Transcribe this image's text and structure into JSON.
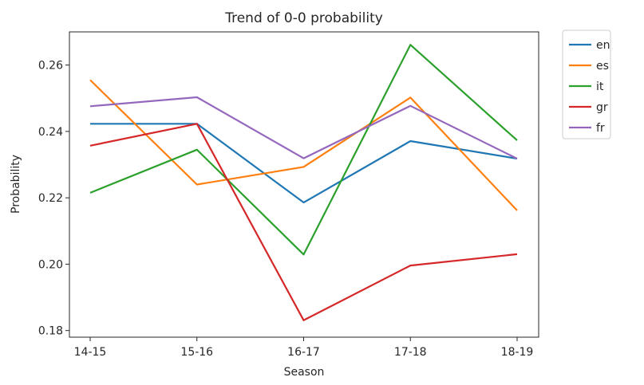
{
  "chart_data": {
    "type": "line",
    "title": "Trend of 0-0 probability",
    "xlabel": "Season",
    "ylabel": "Probability",
    "categories": [
      "14-15",
      "15-16",
      "16-17",
      "17-18",
      "18-19"
    ],
    "ylim": [
      0.178,
      0.27
    ],
    "yticks": [
      0.18,
      0.2,
      0.22,
      0.24,
      0.26
    ],
    "ytick_labels": [
      "0.18",
      "0.20",
      "0.22",
      "0.24",
      "0.26"
    ],
    "grid": false,
    "legend_position": "outside-top-right",
    "series": [
      {
        "name": "en",
        "color": "#1f77b4",
        "values": [
          0.2423,
          0.2423,
          0.2186,
          0.2371,
          0.2318
        ]
      },
      {
        "name": "es",
        "color": "#ff7f0e",
        "values": [
          0.2555,
          0.224,
          0.2293,
          0.2502,
          0.2162
        ]
      },
      {
        "name": "it",
        "color": "#2ca02c",
        "values": [
          0.2215,
          0.2345,
          0.2029,
          0.2661,
          0.2373
        ]
      },
      {
        "name": "gr",
        "color": "#d62728",
        "values": [
          0.2357,
          0.2423,
          0.1831,
          0.1996,
          0.203
        ]
      },
      {
        "name": "fr",
        "color": "#9467bd",
        "values": [
          0.2476,
          0.2503,
          0.2319,
          0.2477,
          0.2318
        ]
      }
    ]
  }
}
